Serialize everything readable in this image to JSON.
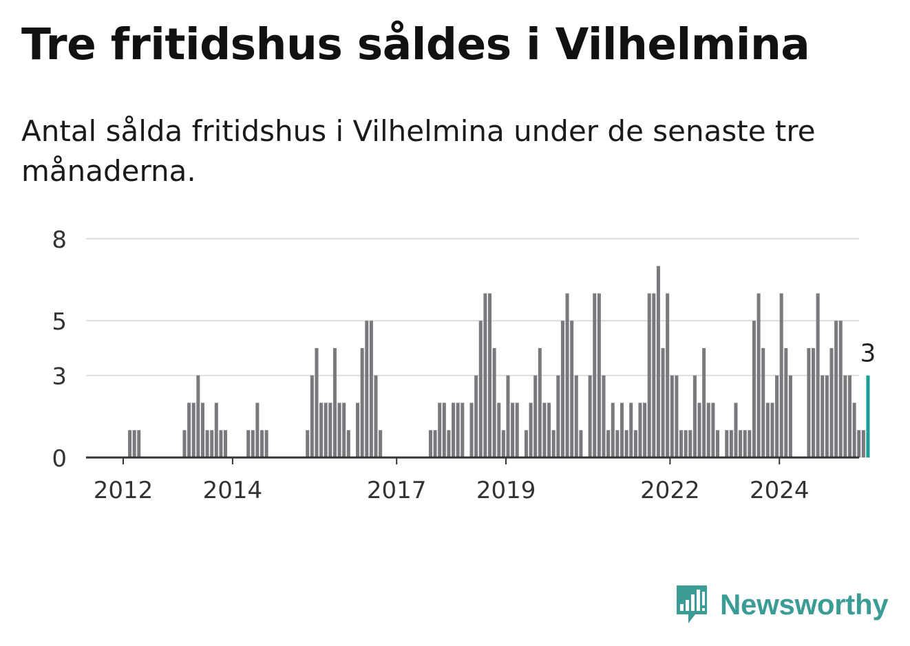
{
  "title": "Tre fritidshus såldes i Vilhelmina",
  "subtitle": "Antal sålda fritidshus i Vilhelmina under de senaste tre månaderna.",
  "brand": {
    "name": "Newsworthy",
    "icon": "newsworthy-logo-icon",
    "color": "#3b9c96"
  },
  "colors": {
    "bar": "#7a797e",
    "highlight": "#1a9e98",
    "grid": "#dcdcdc",
    "axis": "#333333"
  },
  "chart_data": {
    "type": "bar",
    "x_start": "2011-01",
    "frequency": "monthly",
    "values": [
      0,
      0,
      0,
      0,
      0,
      0,
      0,
      0,
      0,
      0,
      0,
      0,
      0,
      1,
      1,
      1,
      0,
      0,
      0,
      0,
      0,
      0,
      0,
      0,
      0,
      1,
      2,
      2,
      3,
      2,
      1,
      1,
      2,
      1,
      1,
      0,
      0,
      0,
      0,
      1,
      1,
      2,
      1,
      1,
      0,
      0,
      0,
      0,
      0,
      0,
      0,
      0,
      1,
      3,
      4,
      2,
      2,
      2,
      4,
      2,
      2,
      1,
      0,
      2,
      4,
      5,
      5,
      3,
      1,
      0,
      0,
      0,
      0,
      0,
      0,
      0,
      0,
      0,
      0,
      1,
      1,
      2,
      2,
      1,
      2,
      2,
      2,
      0,
      2,
      3,
      5,
      6,
      6,
      4,
      2,
      1,
      3,
      2,
      2,
      0,
      1,
      2,
      3,
      4,
      2,
      2,
      1,
      3,
      5,
      6,
      5,
      3,
      1,
      0,
      3,
      6,
      6,
      3,
      1,
      2,
      1,
      2,
      1,
      2,
      1,
      2,
      2,
      6,
      6,
      7,
      4,
      6,
      3,
      3,
      1,
      1,
      1,
      3,
      2,
      4,
      2,
      2,
      1,
      0,
      1,
      1,
      2,
      1,
      1,
      1,
      5,
      6,
      4,
      2,
      2,
      3,
      6,
      4,
      3,
      0,
      0,
      0,
      4,
      4,
      6,
      3,
      3,
      4,
      5,
      5,
      3,
      3,
      2,
      1,
      1,
      3
    ],
    "highlight_last": true,
    "last_label": "3",
    "x_ticks": [
      "2012",
      "2014",
      "2017",
      "2019",
      "2022",
      "2024"
    ],
    "y_ticks": [
      "0",
      "3",
      "5",
      "8"
    ],
    "ylim": [
      0,
      8.4
    ],
    "grid": true,
    "legend": "none"
  }
}
